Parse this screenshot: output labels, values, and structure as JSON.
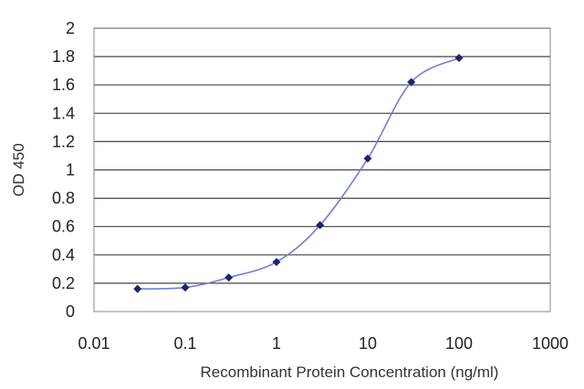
{
  "chart_data": {
    "type": "scatter",
    "xlabel": "Recombinant Protein Concentration (ng/ml)",
    "ylabel": "OD 450",
    "xscale": "log",
    "xlim": [
      0.01,
      1000
    ],
    "ylim": [
      0,
      2
    ],
    "x_ticks": [
      "0.01",
      "0.1",
      "1",
      "10",
      "100",
      "1000"
    ],
    "y_ticks": [
      "0",
      "0.2",
      "0.4",
      "0.6",
      "0.8",
      "1",
      "1.2",
      "1.4",
      "1.6",
      "1.8",
      "2"
    ],
    "grid": "horizontal",
    "series": [
      {
        "x": [
          0.03,
          0.1,
          0.3,
          1,
          3,
          10,
          30,
          100
        ],
        "y": [
          0.16,
          0.17,
          0.24,
          0.35,
          0.61,
          1.08,
          1.62,
          1.79
        ],
        "line": true,
        "markers": "diamond"
      }
    ],
    "colors": {
      "line": "#6f7fd6",
      "marker": "#1c2470",
      "grid": "#444444",
      "plot_border": "#888888"
    }
  }
}
